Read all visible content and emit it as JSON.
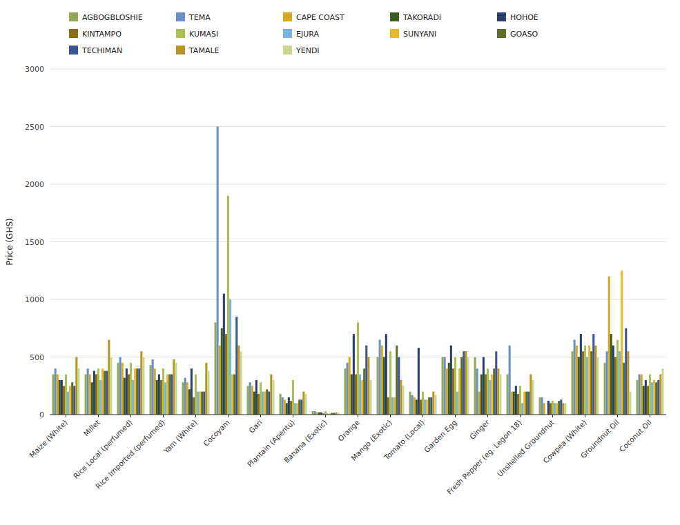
{
  "chart_data": {
    "type": "bar",
    "ylabel": "Price (GHS)",
    "categories": [
      "Maize (White)",
      "Millet",
      "Rice Local (perfumed)",
      "Rice Imported (perfumed)",
      "Yam (White)",
      "Cocoyam",
      "Gari",
      "Plantain (Apentu)",
      "Banana (Exotic)",
      "Orange",
      "Mango (Exotic)",
      "Tomato (Local)",
      "Garden Egg",
      "Ginger",
      "Fresh Pepper (eg. Legon 18)",
      "Unshelled Groundnut",
      "Cowpea (White)",
      "Groundnut Oil",
      "Coconut Oil"
    ],
    "series": [
      {
        "name": "AGBOGBLOSHIE",
        "color": "#8faa56",
        "values": [
          350,
          350,
          450,
          430,
          280,
          800,
          250,
          180,
          30,
          400,
          500,
          200,
          500,
          500,
          350,
          150,
          550,
          450,
          300
        ]
      },
      {
        "name": "TEMA",
        "color": "#6a8fc4",
        "values": [
          400,
          400,
          500,
          480,
          320,
          2500,
          280,
          150,
          30,
          450,
          650,
          170,
          500,
          400,
          600,
          150,
          650,
          550,
          350
        ]
      },
      {
        "name": "CAPE COAST",
        "color": "#d4a820",
        "values": [
          350,
          350,
          450,
          400,
          280,
          600,
          250,
          130,
          20,
          500,
          600,
          150,
          400,
          200,
          200,
          100,
          600,
          1200,
          350
        ]
      },
      {
        "name": "TAKORADI",
        "color": "#3d5c22",
        "values": [
          300,
          280,
          320,
          300,
          220,
          750,
          200,
          100,
          20,
          350,
          500,
          130,
          450,
          350,
          200,
          0,
          500,
          700,
          250
        ]
      },
      {
        "name": "HOHOE",
        "color": "#2b3f6e",
        "values": [
          300,
          380,
          400,
          350,
          400,
          1050,
          300,
          150,
          20,
          700,
          700,
          580,
          600,
          500,
          250,
          120,
          700,
          600,
          300
        ]
      },
      {
        "name": "KINTAMPO",
        "color": "#8b6e14",
        "values": [
          250,
          350,
          350,
          300,
          150,
          700,
          180,
          120,
          10,
          350,
          150,
          130,
          400,
          350,
          180,
          100,
          550,
          500,
          250
        ]
      },
      {
        "name": "KUMASI",
        "color": "#a8c054",
        "values": [
          350,
          400,
          450,
          400,
          350,
          1900,
          280,
          300,
          30,
          800,
          550,
          200,
          500,
          400,
          250,
          120,
          600,
          650,
          350
        ]
      },
      {
        "name": "EJURA",
        "color": "#7ab4d8",
        "values": [
          200,
          300,
          300,
          280,
          200,
          1000,
          200,
          100,
          10,
          350,
          150,
          130,
          200,
          300,
          100,
          100,
          500,
          550,
          280
        ]
      },
      {
        "name": "SUNYANI",
        "color": "#e8b830",
        "values": [
          250,
          400,
          400,
          350,
          200,
          350,
          200,
          100,
          10,
          300,
          150,
          130,
          400,
          350,
          200,
          100,
          600,
          1250,
          300
        ]
      },
      {
        "name": "GOASO",
        "color": "#5c6e28",
        "values": [
          280,
          380,
          400,
          350,
          200,
          350,
          220,
          130,
          15,
          400,
          600,
          150,
          500,
          400,
          200,
          120,
          550,
          450,
          280
        ]
      },
      {
        "name": "TECHIMAN",
        "color": "#3a5496",
        "values": [
          250,
          380,
          400,
          350,
          200,
          850,
          200,
          130,
          15,
          600,
          500,
          150,
          550,
          550,
          200,
          130,
          700,
          750,
          300
        ]
      },
      {
        "name": "TAMALE",
        "color": "#b89420",
        "values": [
          500,
          650,
          550,
          480,
          450,
          600,
          350,
          200,
          20,
          500,
          300,
          200,
          550,
          400,
          350,
          100,
          600,
          550,
          350
        ]
      },
      {
        "name": "YENDI",
        "color": "#c8d890",
        "values": [
          400,
          500,
          500,
          450,
          380,
          550,
          300,
          180,
          20,
          300,
          250,
          170,
          500,
          350,
          300,
          100,
          500,
          200,
          400
        ]
      }
    ],
    "ylim": [
      0,
      3000
    ],
    "yticks": [
      0,
      500,
      1000,
      1500,
      2000,
      2500,
      3000
    ],
    "grid": true,
    "legend": "top"
  }
}
